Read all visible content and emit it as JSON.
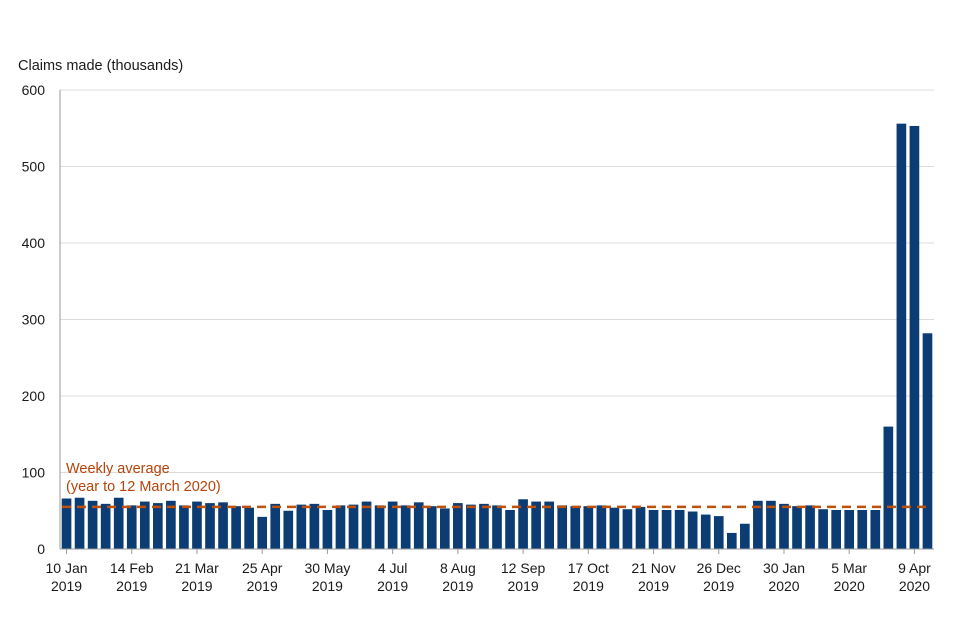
{
  "chart_data": {
    "type": "bar",
    "ylabel": "Claims made (thousands)",
    "ylim": [
      0,
      600
    ],
    "yticks": [
      0,
      100,
      200,
      300,
      400,
      500,
      600
    ],
    "grid": true,
    "bar_color": "#0b3c73",
    "average_color": "#c0500e",
    "x_tick_labels": [
      {
        "index": 0,
        "line1": "10 Jan",
        "line2": "2019"
      },
      {
        "index": 5,
        "line1": "14 Feb",
        "line2": "2019"
      },
      {
        "index": 10,
        "line1": "21 Mar",
        "line2": "2019"
      },
      {
        "index": 15,
        "line1": "25 Apr",
        "line2": "2019"
      },
      {
        "index": 20,
        "line1": "30 May",
        "line2": "2019"
      },
      {
        "index": 25,
        "line1": "4 Jul",
        "line2": "2019"
      },
      {
        "index": 30,
        "line1": "8 Aug",
        "line2": "2019"
      },
      {
        "index": 35,
        "line1": "12 Sep",
        "line2": "2019"
      },
      {
        "index": 40,
        "line1": "17 Oct",
        "line2": "2019"
      },
      {
        "index": 45,
        "line1": "21 Nov",
        "line2": "2019"
      },
      {
        "index": 50,
        "line1": "26 Dec",
        "line2": "2019"
      },
      {
        "index": 55,
        "line1": "30 Jan",
        "line2": "2020"
      },
      {
        "index": 60,
        "line1": "5 Mar",
        "line2": "2020"
      },
      {
        "index": 65,
        "line1": "9 Apr",
        "line2": "2020"
      }
    ],
    "values": [
      66,
      67,
      63,
      59,
      67,
      57,
      62,
      60,
      63,
      57,
      62,
      60,
      61,
      56,
      54,
      42,
      59,
      50,
      58,
      59,
      51,
      57,
      58,
      62,
      57,
      62,
      57,
      61,
      56,
      53,
      60,
      58,
      59,
      57,
      51,
      65,
      62,
      62,
      57,
      56,
      56,
      57,
      54,
      52,
      55,
      51,
      51,
      51,
      49,
      45,
      43,
      21,
      33,
      63,
      63,
      59,
      56,
      57,
      52,
      51,
      51,
      51,
      51,
      160,
      556,
      553,
      282
    ],
    "average": {
      "value": 55,
      "label_line1": "Weekly average",
      "label_line2": "(year to 12 March 2020)"
    }
  }
}
